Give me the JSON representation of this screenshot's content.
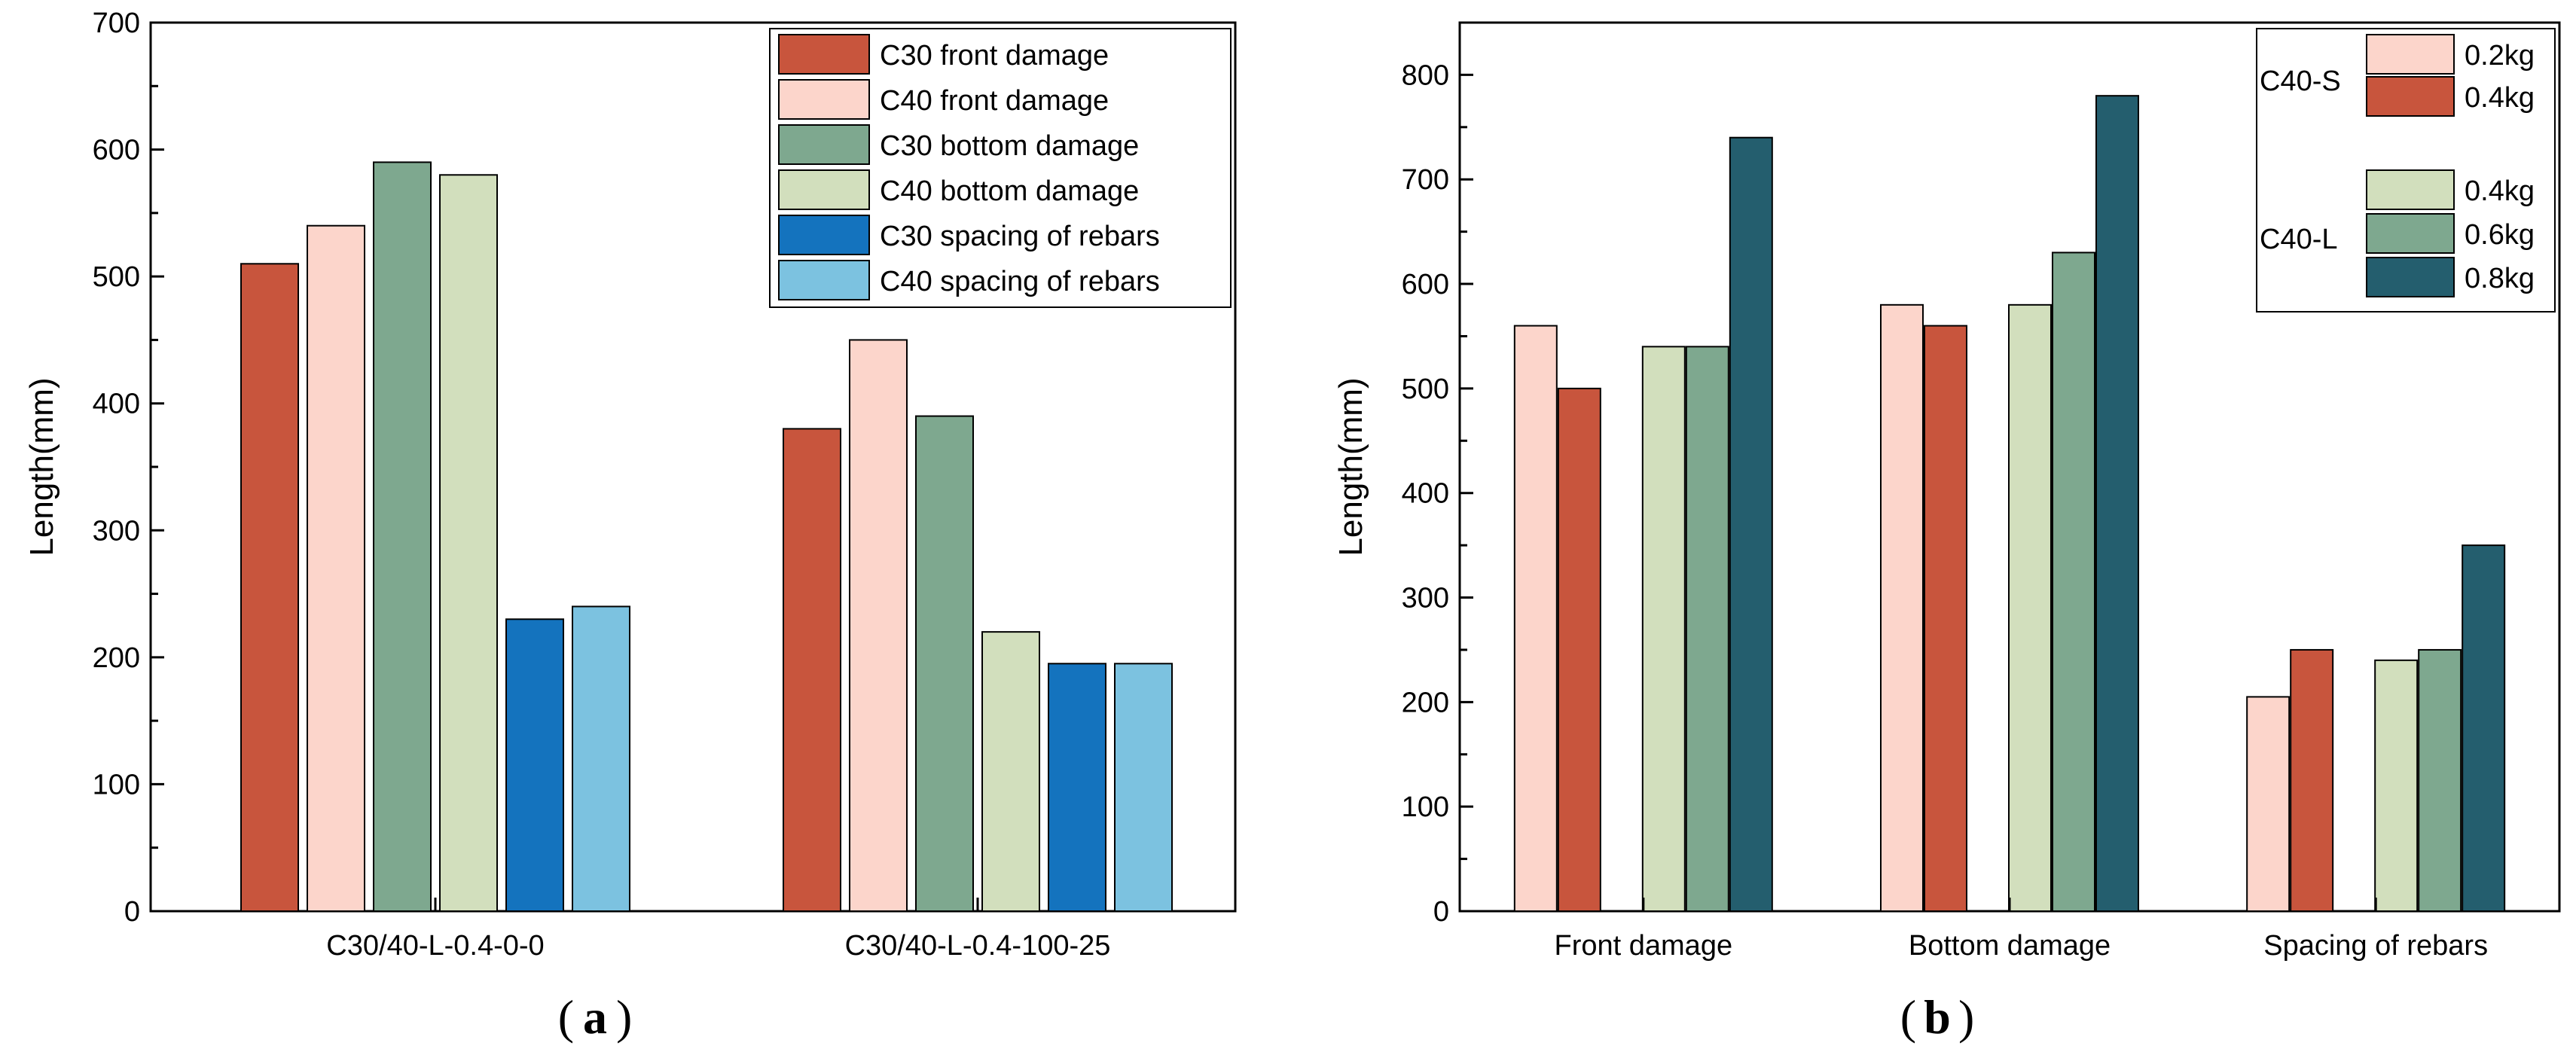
{
  "colors": {
    "c30_front": "#c8553d",
    "c40_front": "#fcd5cb",
    "c30_bottom": "#7ea88f",
    "c40_bottom": "#d2dfbd",
    "c30_spacing": "#1473be",
    "c40_spacing": "#7cc2e0",
    "s_02": "#fcd5cb",
    "s_04": "#c8553d",
    "l_04": "#d2dfbd",
    "l_06": "#7ea88f",
    "l_08": "#245e6e"
  },
  "chart_data": [
    {
      "type": "bar",
      "panel_label": "a",
      "title": "",
      "xlabel": "",
      "ylabel": "Length(mm)",
      "ylim": [
        0,
        700
      ],
      "yticks": [
        0,
        100,
        200,
        300,
        400,
        500,
        600,
        700
      ],
      "categories": [
        "C30/40-L-0.4-0-0",
        "C30/40-L-0.4-100-25"
      ],
      "legend_position": "top-right",
      "series": [
        {
          "name": "C30 front damage",
          "color_key": "c30_front",
          "values": [
            510,
            380
          ]
        },
        {
          "name": "C40 front damage",
          "color_key": "c40_front",
          "values": [
            540,
            450
          ]
        },
        {
          "name": "C30 bottom damage",
          "color_key": "c30_bottom",
          "values": [
            590,
            390
          ]
        },
        {
          "name": "C40 bottom damage",
          "color_key": "c40_bottom",
          "values": [
            580,
            220
          ]
        },
        {
          "name": "C30 spacing of rebars",
          "color_key": "c30_spacing",
          "values": [
            230,
            195
          ]
        },
        {
          "name": "C40 spacing of rebars",
          "color_key": "c40_spacing",
          "values": [
            240,
            195
          ]
        }
      ]
    },
    {
      "type": "bar",
      "panel_label": "b",
      "title": "",
      "xlabel": "",
      "ylabel": "Length(mm)",
      "ylim": [
        0,
        850
      ],
      "yticks": [
        0,
        100,
        200,
        300,
        400,
        500,
        600,
        700,
        800
      ],
      "categories": [
        "Front damage",
        "Bottom damage",
        "Spacing of rebars"
      ],
      "legend_position": "top-right",
      "legend_groups": [
        {
          "label": "C40-S",
          "entries": [
            0,
            1
          ]
        },
        {
          "label": "C40-L",
          "entries": [
            2,
            3,
            4
          ]
        }
      ],
      "series": [
        {
          "name": "0.2kg",
          "group": "C40-S",
          "color_key": "s_02",
          "values": [
            560,
            580,
            205
          ]
        },
        {
          "name": "0.4kg",
          "group": "C40-S",
          "color_key": "s_04",
          "values": [
            500,
            560,
            250
          ]
        },
        {
          "name": "0.4kg",
          "group": "C40-L",
          "color_key": "l_04",
          "values": [
            540,
            580,
            240
          ]
        },
        {
          "name": "0.6kg",
          "group": "C40-L",
          "color_key": "l_06",
          "values": [
            540,
            630,
            250
          ]
        },
        {
          "name": "0.8kg",
          "group": "C40-L",
          "color_key": "l_08",
          "values": [
            740,
            780,
            350
          ]
        }
      ]
    }
  ]
}
